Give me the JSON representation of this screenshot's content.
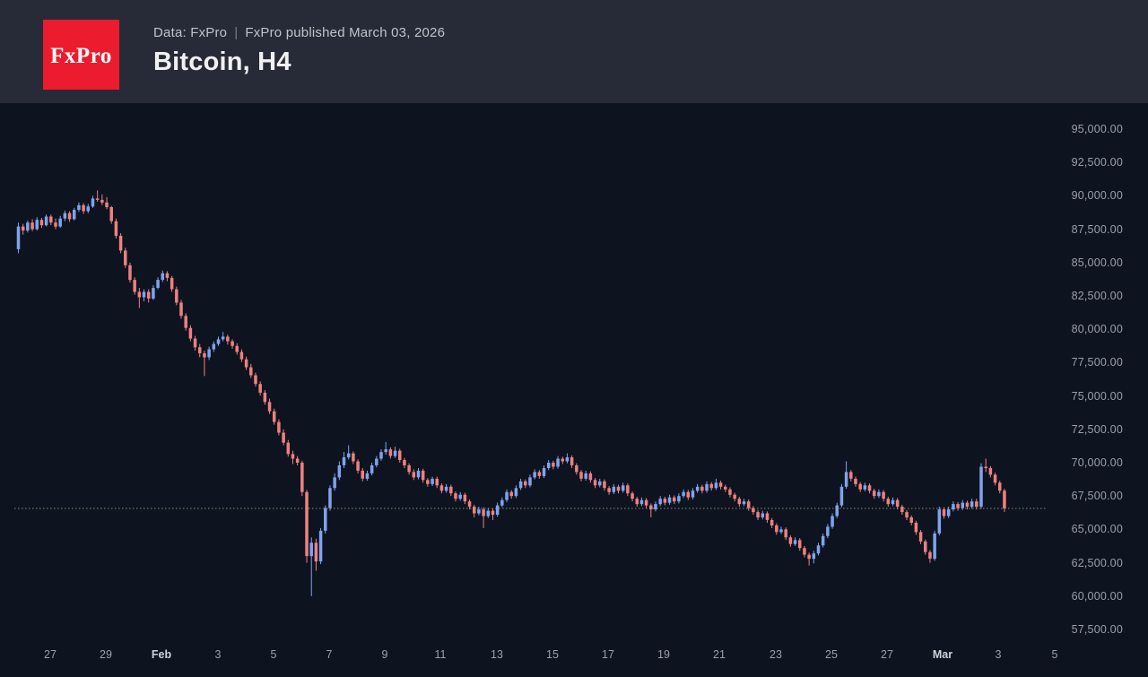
{
  "header": {
    "logo_text": "FxPro",
    "data_source": "Data: FxPro",
    "separator": "|",
    "published": "FxPro published March 03, 2026",
    "title": "Bitcoin, H4"
  },
  "chart_data": {
    "type": "candlestick",
    "symbol": "Bitcoin",
    "timeframe": "H4",
    "title": "Bitcoin, H4",
    "ylim": [
      57500,
      95000
    ],
    "y_tick_step": 2500,
    "grid": false,
    "legend": "none",
    "colors": {
      "up": "#7fa3f0",
      "down": "#f08080",
      "current_price_line": "#a69e88"
    },
    "y_ticks": [
      {
        "label": "95,000.00",
        "value": 95000
      },
      {
        "label": "92,500.00",
        "value": 92500
      },
      {
        "label": "90,000.00",
        "value": 90000
      },
      {
        "label": "87,500.00",
        "value": 87500
      },
      {
        "label": "85,000.00",
        "value": 85000
      },
      {
        "label": "82,500.00",
        "value": 82500
      },
      {
        "label": "80,000.00",
        "value": 80000
      },
      {
        "label": "77,500.00",
        "value": 77500
      },
      {
        "label": "75,000.00",
        "value": 75000
      },
      {
        "label": "72,500.00",
        "value": 72500
      },
      {
        "label": "70,000.00",
        "value": 70000
      },
      {
        "label": "67,500.00",
        "value": 67500
      },
      {
        "label": "65,000.00",
        "value": 65000
      },
      {
        "label": "62,500.00",
        "value": 62500
      },
      {
        "label": "60,000.00",
        "value": 60000
      },
      {
        "label": "57,500.00",
        "value": 57500
      }
    ],
    "x_ticks": [
      {
        "label": "27",
        "bold": false
      },
      {
        "label": "29",
        "bold": false
      },
      {
        "label": "Feb",
        "bold": true
      },
      {
        "label": "3",
        "bold": false
      },
      {
        "label": "5",
        "bold": false
      },
      {
        "label": "7",
        "bold": false
      },
      {
        "label": "9",
        "bold": false
      },
      {
        "label": "11",
        "bold": false
      },
      {
        "label": "13",
        "bold": false
      },
      {
        "label": "15",
        "bold": false
      },
      {
        "label": "17",
        "bold": false
      },
      {
        "label": "19",
        "bold": false
      },
      {
        "label": "21",
        "bold": false
      },
      {
        "label": "23",
        "bold": false
      },
      {
        "label": "25",
        "bold": false
      },
      {
        "label": "27",
        "bold": false
      },
      {
        "label": "Mar",
        "bold": true
      },
      {
        "label": "3",
        "bold": false
      },
      {
        "label": "5",
        "bold": false
      }
    ],
    "current_price": 66570,
    "current_price_line_style": "dotted",
    "candles": [
      [
        86000,
        88000,
        85700,
        87700
      ],
      [
        87700,
        87900,
        87100,
        87400
      ],
      [
        87400,
        88150,
        87250,
        88000
      ],
      [
        88000,
        88250,
        87350,
        87500
      ],
      [
        87500,
        88400,
        87400,
        88200
      ],
      [
        88200,
        88350,
        87600,
        87800
      ],
      [
        87800,
        88600,
        87700,
        88450
      ],
      [
        88450,
        88600,
        87800,
        88000
      ],
      [
        88000,
        88300,
        87500,
        87700
      ],
      [
        87700,
        88500,
        87600,
        88300
      ],
      [
        88300,
        88900,
        88100,
        88700
      ],
      [
        88700,
        88850,
        88050,
        88250
      ],
      [
        88250,
        89100,
        88150,
        88950
      ],
      [
        88950,
        89500,
        88800,
        89300
      ],
      [
        89300,
        89450,
        88650,
        88850
      ],
      [
        88850,
        89400,
        88700,
        89200
      ],
      [
        89200,
        90000,
        89100,
        89800
      ],
      [
        89800,
        90400,
        89550,
        89700
      ],
      [
        89700,
        90100,
        89300,
        89500
      ],
      [
        89500,
        89900,
        89000,
        89150
      ],
      [
        89150,
        89250,
        87900,
        88100
      ],
      [
        88100,
        88300,
        86800,
        87000
      ],
      [
        87000,
        87200,
        85700,
        85900
      ],
      [
        85900,
        86100,
        84600,
        84800
      ],
      [
        84800,
        85000,
        83500,
        83700
      ],
      [
        83700,
        83900,
        82600,
        82800
      ],
      [
        82800,
        83100,
        81600,
        82400
      ],
      [
        82400,
        83000,
        82100,
        82800
      ],
      [
        82800,
        83000,
        82000,
        82300
      ],
      [
        82300,
        83300,
        82200,
        83100
      ],
      [
        83100,
        83900,
        83000,
        83700
      ],
      [
        83700,
        84400,
        83550,
        84200
      ],
      [
        84200,
        84350,
        83600,
        83850
      ],
      [
        83850,
        84000,
        82800,
        83000
      ],
      [
        83000,
        83200,
        81800,
        82000
      ],
      [
        82000,
        82200,
        80800,
        81000
      ],
      [
        81000,
        81200,
        79900,
        80100
      ],
      [
        80100,
        80300,
        79100,
        79300
      ],
      [
        79300,
        79500,
        78400,
        78650
      ],
      [
        78650,
        78900,
        77900,
        78200
      ],
      [
        78200,
        78400,
        76500,
        77900
      ],
      [
        77900,
        78700,
        77700,
        78500
      ],
      [
        78500,
        79100,
        78300,
        78900
      ],
      [
        78900,
        79450,
        78750,
        79250
      ],
      [
        79250,
        79800,
        79100,
        79450
      ],
      [
        79450,
        79600,
        78850,
        79100
      ],
      [
        79100,
        79250,
        78550,
        78750
      ],
      [
        78750,
        78950,
        78100,
        78300
      ],
      [
        78300,
        78500,
        77550,
        77750
      ],
      [
        77750,
        77950,
        76950,
        77150
      ],
      [
        77150,
        77400,
        76350,
        76550
      ],
      [
        76550,
        76750,
        75700,
        75900
      ],
      [
        75900,
        76100,
        75050,
        75250
      ],
      [
        75250,
        75450,
        74350,
        74550
      ],
      [
        74550,
        74800,
        73650,
        73850
      ],
      [
        73850,
        74050,
        72850,
        73050
      ],
      [
        73050,
        73250,
        72050,
        72250
      ],
      [
        72250,
        72500,
        71300,
        71500
      ],
      [
        71500,
        71700,
        70450,
        70650
      ],
      [
        70650,
        70900,
        69900,
        70300
      ],
      [
        70300,
        70500,
        69800,
        70000
      ],
      [
        70000,
        70150,
        67500,
        67800
      ],
      [
        67800,
        67950,
        62500,
        63000
      ],
      [
        63000,
        64400,
        60000,
        64000
      ],
      [
        64000,
        64300,
        61900,
        62600
      ],
      [
        62600,
        65100,
        62400,
        64900
      ],
      [
        64900,
        66800,
        64700,
        66600
      ],
      [
        66600,
        68300,
        66400,
        68100
      ],
      [
        68100,
        69200,
        67900,
        68900
      ],
      [
        68900,
        70100,
        68700,
        69800
      ],
      [
        69800,
        70800,
        69600,
        70400
      ],
      [
        70400,
        71300,
        70250,
        70700
      ],
      [
        70700,
        70850,
        69900,
        70100
      ],
      [
        70100,
        70250,
        69200,
        69400
      ],
      [
        69400,
        69600,
        68600,
        68800
      ],
      [
        68800,
        69400,
        68650,
        69200
      ],
      [
        69200,
        70000,
        69050,
        69800
      ],
      [
        69800,
        70500,
        69650,
        70300
      ],
      [
        70300,
        71000,
        70150,
        70800
      ],
      [
        70800,
        71550,
        70600,
        71000
      ],
      [
        71000,
        71150,
        70300,
        70500
      ],
      [
        70500,
        71200,
        70350,
        70900
      ],
      [
        70900,
        71050,
        70000,
        70200
      ],
      [
        70200,
        70350,
        69600,
        69800
      ],
      [
        69800,
        69950,
        69100,
        69300
      ],
      [
        69300,
        69500,
        68700,
        68900
      ],
      [
        68900,
        69600,
        68750,
        69400
      ],
      [
        69400,
        69550,
        68500,
        68700
      ],
      [
        68700,
        68850,
        68200,
        68400
      ],
      [
        68400,
        68950,
        68250,
        68800
      ],
      [
        68800,
        68950,
        68100,
        68300
      ],
      [
        68300,
        68450,
        67700,
        67900
      ],
      [
        67900,
        68400,
        67750,
        68200
      ],
      [
        68200,
        68350,
        67500,
        67700
      ],
      [
        67700,
        67850,
        67100,
        67300
      ],
      [
        67300,
        67800,
        67150,
        67600
      ],
      [
        67600,
        67750,
        66900,
        67100
      ],
      [
        67100,
        67250,
        66500,
        66700
      ],
      [
        66700,
        66850,
        65900,
        66200
      ],
      [
        66200,
        66700,
        66050,
        66500
      ],
      [
        66500,
        66650,
        65100,
        66000
      ],
      [
        66000,
        66600,
        65850,
        66400
      ],
      [
        66400,
        66550,
        65700,
        66100
      ],
      [
        66100,
        67000,
        65950,
        66800
      ],
      [
        66800,
        67400,
        66650,
        67200
      ],
      [
        67200,
        68000,
        67050,
        67800
      ],
      [
        67800,
        67950,
        67300,
        67500
      ],
      [
        67500,
        68300,
        67350,
        68100
      ],
      [
        68100,
        68800,
        67950,
        68600
      ],
      [
        68600,
        68750,
        68100,
        68300
      ],
      [
        68300,
        69100,
        68150,
        68900
      ],
      [
        68900,
        69500,
        68750,
        69300
      ],
      [
        69300,
        69450,
        68800,
        69000
      ],
      [
        69000,
        69800,
        68850,
        69600
      ],
      [
        69600,
        70200,
        69450,
        70000
      ],
      [
        70000,
        70150,
        69500,
        69700
      ],
      [
        69700,
        70500,
        69550,
        70300
      ],
      [
        70300,
        70450,
        69900,
        70100
      ],
      [
        70100,
        70700,
        69950,
        70400
      ],
      [
        70400,
        70550,
        69600,
        69800
      ],
      [
        69800,
        69950,
        69100,
        69300
      ],
      [
        69300,
        69450,
        68600,
        68800
      ],
      [
        68800,
        69400,
        68650,
        69200
      ],
      [
        69200,
        69350,
        68500,
        68700
      ],
      [
        68700,
        68850,
        68100,
        68300
      ],
      [
        68300,
        68800,
        68150,
        68600
      ],
      [
        68600,
        68750,
        67900,
        68100
      ],
      [
        68100,
        68250,
        67600,
        67800
      ],
      [
        67800,
        68400,
        67650,
        68200
      ],
      [
        68200,
        68350,
        67700,
        67900
      ],
      [
        67900,
        68500,
        67750,
        68300
      ],
      [
        68300,
        68450,
        67500,
        67700
      ],
      [
        67700,
        67850,
        67100,
        67300
      ],
      [
        67300,
        67450,
        66700,
        66900
      ],
      [
        66900,
        67400,
        66750,
        67200
      ],
      [
        67200,
        67350,
        66600,
        66800
      ],
      [
        66800,
        66950,
        65900,
        66500
      ],
      [
        66500,
        67100,
        66350,
        66900
      ],
      [
        66900,
        67500,
        66750,
        67300
      ],
      [
        67300,
        67450,
        66800,
        67000
      ],
      [
        67000,
        67600,
        66850,
        67400
      ],
      [
        67400,
        67550,
        66900,
        67100
      ],
      [
        67100,
        67700,
        66950,
        67500
      ],
      [
        67500,
        68000,
        67350,
        67800
      ],
      [
        67800,
        67950,
        67200,
        67400
      ],
      [
        67400,
        68100,
        67250,
        67900
      ],
      [
        67900,
        68400,
        67750,
        68200
      ],
      [
        68200,
        68350,
        67700,
        67900
      ],
      [
        67900,
        68600,
        67750,
        68400
      ],
      [
        68400,
        68550,
        67900,
        68100
      ],
      [
        68100,
        68800,
        67950,
        68500
      ],
      [
        68500,
        68650,
        68000,
        68200
      ],
      [
        68200,
        68350,
        67800,
        68000
      ],
      [
        68000,
        68150,
        67400,
        67600
      ],
      [
        67600,
        67750,
        67100,
        67300
      ],
      [
        67300,
        67450,
        66700,
        66900
      ],
      [
        66900,
        67300,
        66750,
        67100
      ],
      [
        67100,
        67250,
        66400,
        66600
      ],
      [
        66600,
        66750,
        66100,
        66300
      ],
      [
        66300,
        66450,
        65700,
        65900
      ],
      [
        65900,
        66400,
        65750,
        66200
      ],
      [
        66200,
        66350,
        65500,
        65700
      ],
      [
        65700,
        65850,
        65100,
        65300
      ],
      [
        65300,
        65450,
        64600,
        64800
      ],
      [
        64800,
        65200,
        64650,
        65000
      ],
      [
        65000,
        65150,
        64200,
        64400
      ],
      [
        64400,
        64550,
        63700,
        63900
      ],
      [
        63900,
        64400,
        63750,
        64200
      ],
      [
        64200,
        64350,
        63400,
        63600
      ],
      [
        63600,
        63750,
        62900,
        63100
      ],
      [
        63100,
        63250,
        62300,
        62800
      ],
      [
        62800,
        63400,
        62450,
        63200
      ],
      [
        63200,
        64000,
        63050,
        63800
      ],
      [
        63800,
        64700,
        63650,
        64500
      ],
      [
        64500,
        65400,
        64350,
        65200
      ],
      [
        65200,
        66200,
        65050,
        66000
      ],
      [
        66000,
        67000,
        65850,
        66800
      ],
      [
        66800,
        68400,
        66650,
        68200
      ],
      [
        68200,
        70100,
        68050,
        69300
      ],
      [
        69300,
        69450,
        68600,
        68800
      ],
      [
        68800,
        68950,
        68200,
        68400
      ],
      [
        68400,
        68550,
        67800,
        68000
      ],
      [
        68000,
        68500,
        67850,
        68300
      ],
      [
        68300,
        68450,
        67700,
        67900
      ],
      [
        67900,
        68050,
        67300,
        67500
      ],
      [
        67500,
        68000,
        67350,
        67800
      ],
      [
        67800,
        67950,
        67100,
        67300
      ],
      [
        67300,
        67450,
        66700,
        66900
      ],
      [
        66900,
        67400,
        66750,
        67200
      ],
      [
        67200,
        67350,
        66500,
        66700
      ],
      [
        66700,
        66850,
        66100,
        66300
      ],
      [
        66300,
        66450,
        65700,
        65900
      ],
      [
        65900,
        66050,
        65300,
        65500
      ],
      [
        65500,
        65650,
        64600,
        64800
      ],
      [
        64800,
        64950,
        63900,
        64100
      ],
      [
        64100,
        64250,
        63100,
        63300
      ],
      [
        63300,
        63450,
        62500,
        62800
      ],
      [
        62800,
        64900,
        62650,
        64700
      ],
      [
        64700,
        66700,
        64550,
        66500
      ],
      [
        66500,
        66650,
        65800,
        66000
      ],
      [
        66000,
        66700,
        65850,
        66500
      ],
      [
        66500,
        67100,
        66350,
        66900
      ],
      [
        66900,
        67050,
        66400,
        66600
      ],
      [
        66600,
        67200,
        66450,
        67000
      ],
      [
        67000,
        67150,
        66500,
        66700
      ],
      [
        66700,
        67300,
        66550,
        67100
      ],
      [
        67100,
        67300,
        66500,
        66700
      ],
      [
        66700,
        69950,
        66550,
        69700
      ],
      [
        69700,
        70300,
        69300,
        69600
      ],
      [
        69600,
        69750,
        68900,
        69100
      ],
      [
        69100,
        69250,
        68300,
        68500
      ],
      [
        68500,
        68650,
        67700,
        67900
      ],
      [
        67900,
        68050,
        66300,
        66570
      ]
    ]
  }
}
